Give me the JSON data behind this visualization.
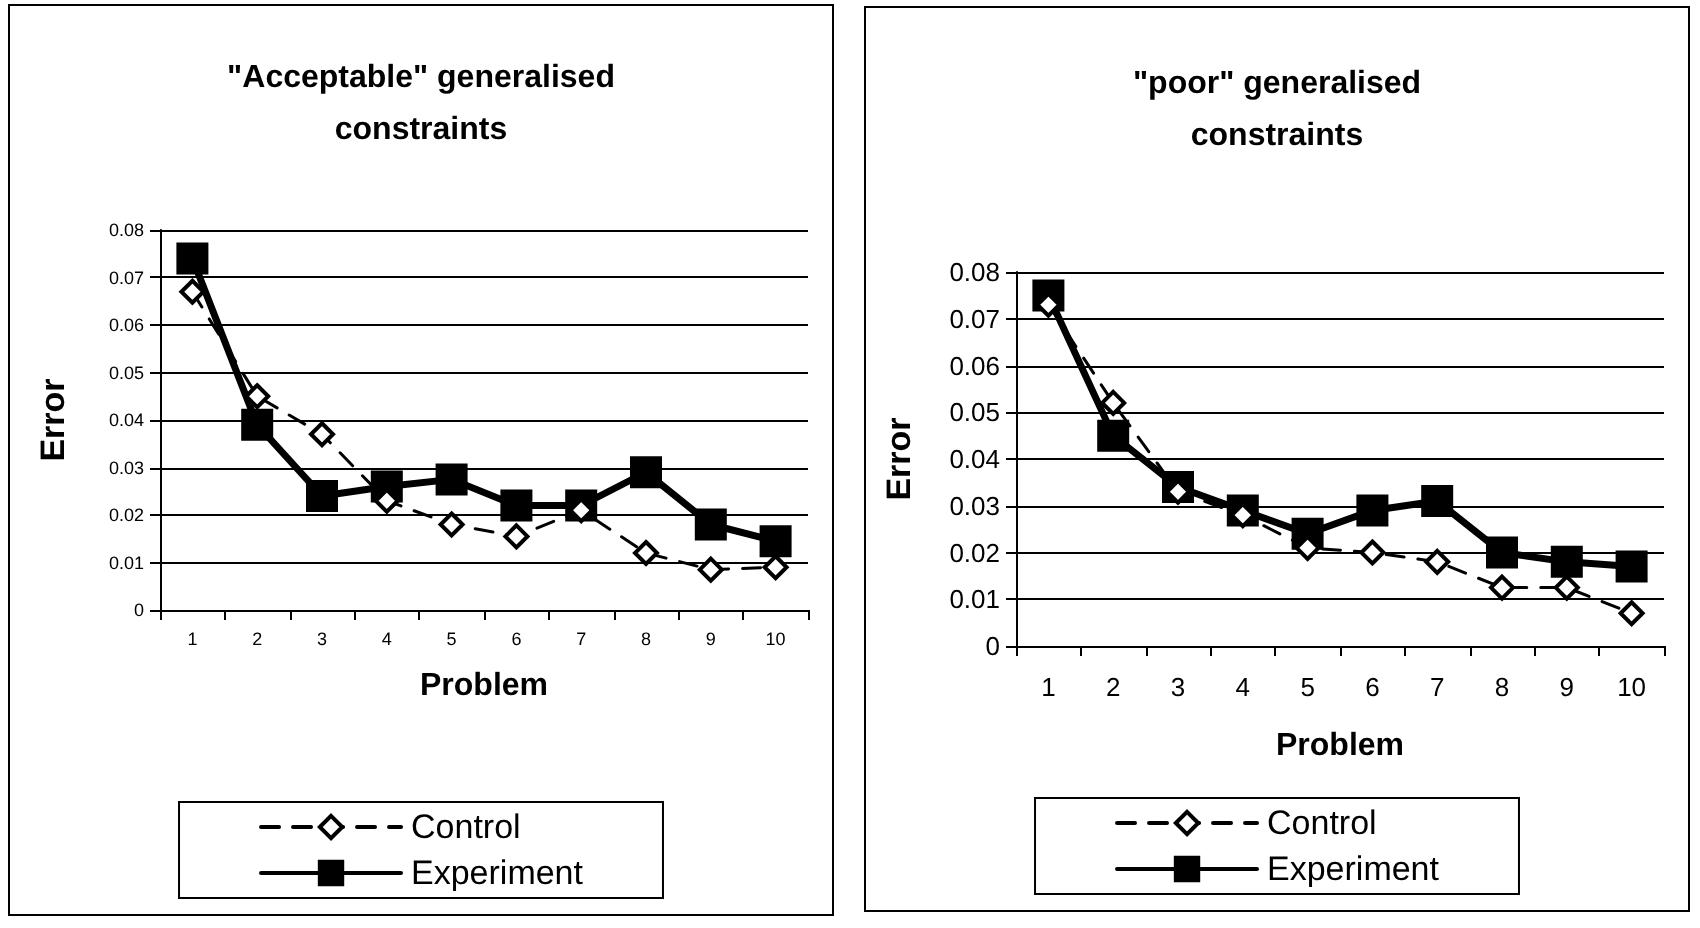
{
  "chart_data": [
    {
      "type": "line",
      "title": "\"Acceptable\" generalised\nconstraints",
      "xlabel": "Problem",
      "ylabel": "Error",
      "categories": [
        "1",
        "2",
        "3",
        "4",
        "5",
        "6",
        "7",
        "8",
        "9",
        "10"
      ],
      "ylim": [
        0,
        0.08
      ],
      "yticks": [
        0,
        0.01,
        0.02,
        0.03,
        0.04,
        0.05,
        0.06,
        0.07,
        0.08
      ],
      "grid": "y",
      "legend": "bottom",
      "series": [
        {
          "name": "Control",
          "color": "#000000",
          "marker": "diamond",
          "line_style": "dashed",
          "values": [
            0.067,
            0.045,
            0.037,
            0.023,
            0.018,
            0.0155,
            0.021,
            0.012,
            0.0085,
            0.009
          ]
        },
        {
          "name": "Experiment",
          "color": "#000000",
          "marker": "square",
          "line_style": "solid",
          "values": [
            0.074,
            0.039,
            0.024,
            0.026,
            0.0275,
            0.022,
            0.022,
            0.029,
            0.018,
            0.0145
          ]
        }
      ]
    },
    {
      "type": "line",
      "title": "\"poor\" generalised\nconstraints",
      "xlabel": "Problem",
      "ylabel": "Error",
      "categories": [
        "1",
        "2",
        "3",
        "4",
        "5",
        "6",
        "7",
        "8",
        "9",
        "10"
      ],
      "ylim": [
        0,
        0.08
      ],
      "yticks": [
        0,
        0.01,
        0.02,
        0.03,
        0.04,
        0.05,
        0.06,
        0.07,
        0.08
      ],
      "grid": "y",
      "legend": "bottom",
      "series": [
        {
          "name": "Control",
          "color": "#000000",
          "marker": "diamond",
          "line_style": "dashed",
          "values": [
            0.073,
            0.052,
            0.033,
            0.028,
            0.021,
            0.02,
            0.018,
            0.0125,
            0.0125,
            0.007
          ]
        },
        {
          "name": "Experiment",
          "color": "#000000",
          "marker": "square",
          "line_style": "solid",
          "values": [
            0.075,
            0.045,
            0.034,
            0.029,
            0.024,
            0.029,
            0.031,
            0.02,
            0.018,
            0.017
          ]
        }
      ]
    }
  ]
}
